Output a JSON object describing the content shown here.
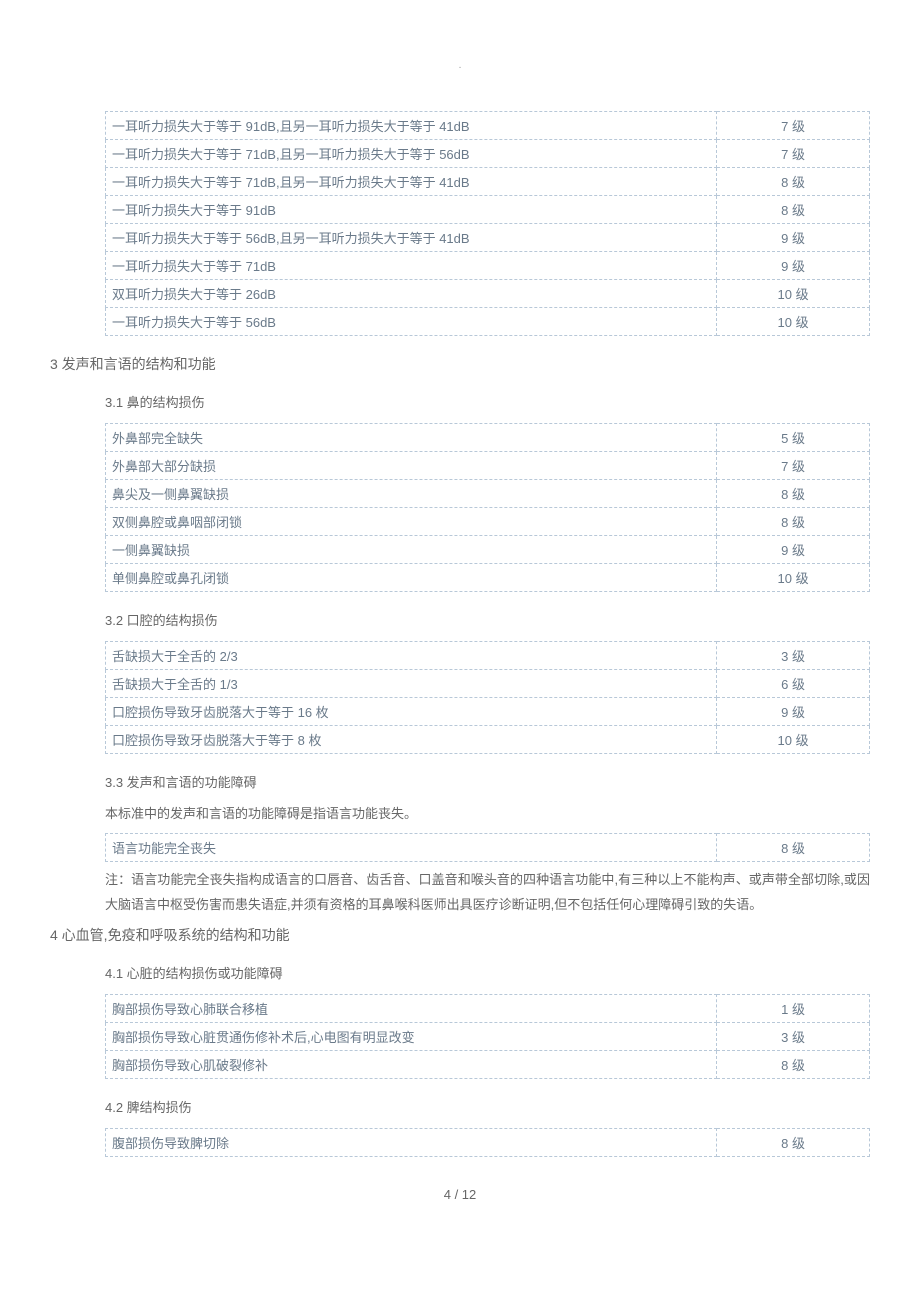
{
  "topDot": ".",
  "table0": {
    "rows": [
      {
        "desc": "一耳听力损失大于等于 91dB,且另一耳听力损失大于等于 41dB",
        "level": "7 级"
      },
      {
        "desc": "一耳听力损失大于等于 71dB,且另一耳听力损失大于等于 56dB",
        "level": "7 级"
      },
      {
        "desc": "一耳听力损失大于等于 71dB,且另一耳听力损失大于等于 41dB",
        "level": "8 级"
      },
      {
        "desc": "一耳听力损失大于等于 91dB",
        "level": "8 级"
      },
      {
        "desc": "一耳听力损失大于等于 56dB,且另一耳听力损失大于等于 41dB",
        "level": "9 级"
      },
      {
        "desc": "一耳听力损失大于等于 71dB",
        "level": "9 级"
      },
      {
        "desc": "双耳听力损失大于等于 26dB",
        "level": "10 级"
      },
      {
        "desc": "一耳听力损失大于等于 56dB",
        "level": "10 级"
      }
    ]
  },
  "section3": {
    "heading": "3  发声和言语的结构和功能",
    "sub1": {
      "heading": "3.1  鼻的结构损伤",
      "rows": [
        {
          "desc": "外鼻部完全缺失",
          "level": "5 级"
        },
        {
          "desc": "外鼻部大部分缺损",
          "level": "7 级"
        },
        {
          "desc": "鼻尖及一侧鼻翼缺损",
          "level": "8 级"
        },
        {
          "desc": "双侧鼻腔或鼻咽部闭锁",
          "level": "8 级"
        },
        {
          "desc": "一侧鼻翼缺损",
          "level": "9 级"
        },
        {
          "desc": "单侧鼻腔或鼻孔闭锁",
          "level": "10 级"
        }
      ]
    },
    "sub2": {
      "heading": "3.2  口腔的结构损伤",
      "rows": [
        {
          "desc": "舌缺损大于全舌的 2/3",
          "level": "3 级"
        },
        {
          "desc": "舌缺损大于全舌的 1/3",
          "level": "6 级"
        },
        {
          "desc": "口腔损伤导致牙齿脱落大于等于 16 枚",
          "level": "9 级"
        },
        {
          "desc": "口腔损伤导致牙齿脱落大于等于 8 枚",
          "level": "10 级"
        }
      ]
    },
    "sub3": {
      "heading": "3.3  发声和言语的功能障碍",
      "intro": "本标准中的发声和言语的功能障碍是指语言功能丧失。",
      "rows": [
        {
          "desc": "语言功能完全丧失",
          "level": "8 级"
        }
      ],
      "note": "注：语言功能完全丧失指构成语言的口唇音、齿舌音、口盖音和喉头音的四种语言功能中,有三种以上不能构声、或声带全部切除,或因大脑语言中枢受伤害而患失语症,并须有资格的耳鼻喉科医师出具医疗诊断证明,但不包括任何心理障碍引致的失语。"
    }
  },
  "section4": {
    "heading": "4  心血管,免疫和呼吸系统的结构和功能",
    "sub1": {
      "heading": "4.1  心脏的结构损伤或功能障碍",
      "rows": [
        {
          "desc": "胸部损伤导致心肺联合移植",
          "level": "1 级"
        },
        {
          "desc": "胸部损伤导致心脏贯通伤修补术后,心电图有明显改变",
          "level": "3 级"
        },
        {
          "desc": "胸部损伤导致心肌破裂修补",
          "level": "8 级"
        }
      ]
    },
    "sub2": {
      "heading": "4.2  脾结构损伤",
      "rows": [
        {
          "desc": "腹部损伤导致脾切除",
          "level": "8 级"
        }
      ]
    }
  },
  "pageNumber": "4  /  12"
}
